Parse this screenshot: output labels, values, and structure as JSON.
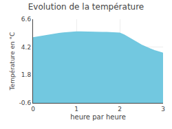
{
  "chart_data": {
    "type": "area",
    "title": "Evolution de la température",
    "x_label": "heure par heure",
    "y_label": "Température en °C",
    "x": [
      0.0,
      0.1,
      0.2,
      0.3,
      0.4,
      0.5,
      0.6,
      0.7,
      0.8,
      0.9,
      1.0,
      1.1,
      1.2,
      1.3,
      1.4,
      1.5,
      1.6,
      1.7,
      1.8,
      1.9,
      2.0,
      2.1,
      2.2,
      2.3,
      2.4,
      2.5,
      2.6,
      2.7,
      2.8,
      2.9,
      3.0
    ],
    "values": [
      5.0,
      5.07,
      5.13,
      5.2,
      5.27,
      5.33,
      5.38,
      5.42,
      5.46,
      5.49,
      5.51,
      5.51,
      5.51,
      5.5,
      5.49,
      5.48,
      5.47,
      5.46,
      5.45,
      5.43,
      5.4,
      5.24,
      5.04,
      4.82,
      4.6,
      4.38,
      4.2,
      4.05,
      3.9,
      3.78,
      3.68
    ],
    "color": "#72c8e0",
    "xlim": [
      0,
      3
    ],
    "ylim": [
      -0.6,
      6.6
    ],
    "xticks": [
      0,
      1,
      2,
      3
    ],
    "yticks": [
      -0.6,
      1.8,
      4.2,
      6.6
    ],
    "grid": true
  }
}
